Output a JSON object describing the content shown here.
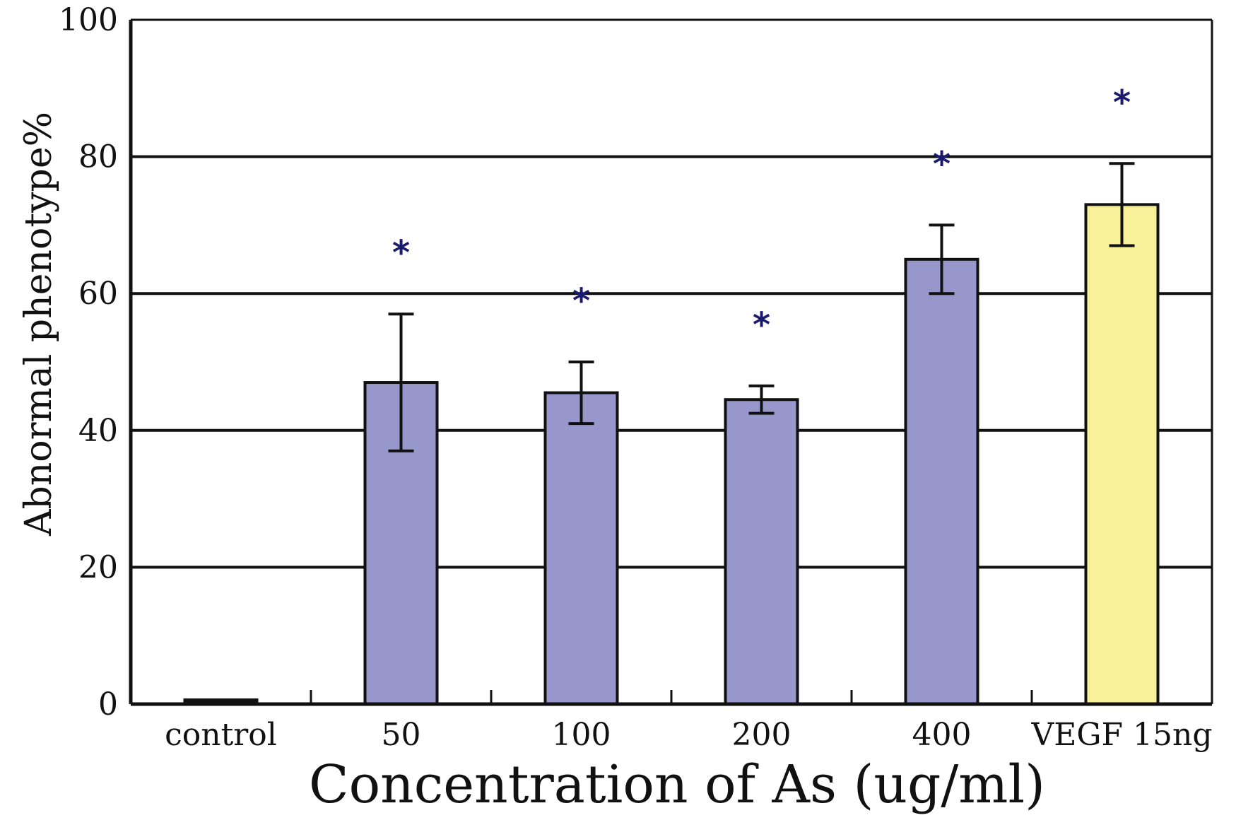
{
  "chart_data": {
    "type": "bar",
    "title": "",
    "xlabel": "Concentration of As (ug/ml)",
    "ylabel": "Abnormal phenotype%",
    "ylim": [
      0,
      100
    ],
    "yticks": [
      "0",
      "20",
      "40",
      "60",
      "80",
      "100"
    ],
    "grid": "horizontal",
    "categories": [
      "control",
      "50",
      "100",
      "200",
      "400",
      "VEGF 15ng"
    ],
    "values": [
      0,
      47,
      45.5,
      44.5,
      65,
      73
    ],
    "error": [
      0,
      10,
      4.5,
      2,
      5,
      6
    ],
    "significance": [
      "",
      "*",
      "*",
      "*",
      "*",
      "*"
    ],
    "colors": {
      "as_bar": "#9797cb",
      "vegf_bar": "#f8f199",
      "significance": "#1a1a6e",
      "axis": "#111111"
    },
    "bar_colors": [
      "#9797cb",
      "#9797cb",
      "#9797cb",
      "#9797cb",
      "#9797cb",
      "#f8f199"
    ]
  }
}
